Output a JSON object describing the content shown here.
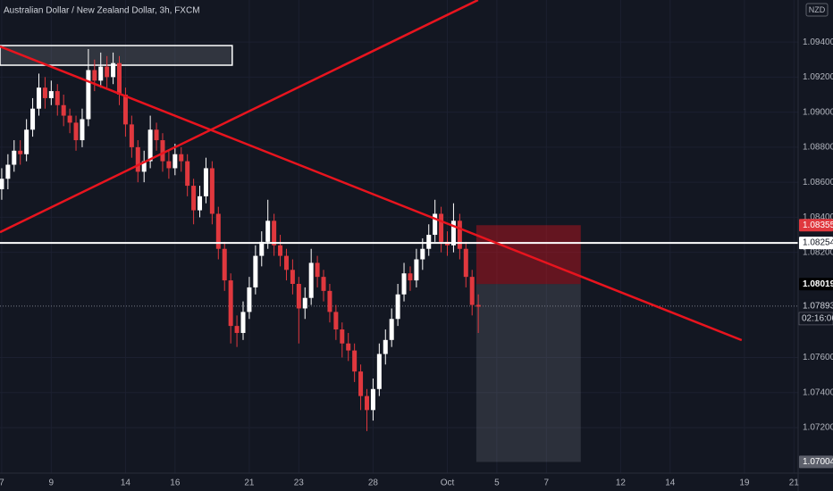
{
  "chart_data": {
    "type": "candlestick",
    "title": "Australian Dollar / New Zealand Dollar, 3h, FXCM",
    "currency": "NZD",
    "up_color": "#ffffff",
    "down_color": "#e0383e",
    "grid": true,
    "x": [
      0,
      0.25,
      0.5,
      0.75,
      1,
      1.25,
      1.5,
      1.75,
      2,
      2.25,
      2.5,
      2.75,
      3,
      3.25,
      3.5,
      3.75,
      4,
      4.25,
      4.5,
      4.75,
      5,
      5.25,
      5.5,
      5.75,
      6,
      6.25,
      6.5,
      6.75,
      7,
      7.25,
      7.5,
      7.75,
      8,
      8.25,
      8.5,
      8.75,
      9,
      9.25,
      9.5,
      9.75,
      10,
      10.25,
      10.5,
      10.75,
      11,
      11.25,
      11.5,
      11.75,
      12,
      12.25,
      12.5,
      12.75,
      13,
      13.25,
      13.5,
      13.75,
      14,
      14.25,
      14.5,
      14.75,
      15,
      15.25,
      15.5,
      15.75,
      16,
      16.25,
      16.5,
      16.75,
      17,
      17.25,
      17.5,
      17.75,
      18,
      18.25,
      18.5,
      18.75,
      19,
      19.25
    ],
    "open": [
      1.0856,
      1.0862,
      1.087,
      1.0878,
      1.0876,
      1.089,
      1.0902,
      1.0914,
      1.0908,
      1.0912,
      1.0904,
      1.0898,
      1.0894,
      1.0884,
      1.0896,
      1.0924,
      1.0918,
      1.0926,
      1.092,
      1.0928,
      1.091,
      1.0893,
      1.088,
      1.0866,
      1.0872,
      1.089,
      1.0884,
      1.0872,
      1.0868,
      1.0876,
      1.0872,
      1.0858,
      1.0844,
      1.0852,
      1.0868,
      1.0842,
      1.0822,
      1.0804,
      1.0778,
      1.0774,
      1.0786,
      1.08,
      1.0818,
      1.0826,
      1.0838,
      1.0824,
      1.0818,
      1.081,
      1.0802,
      1.0788,
      1.0794,
      1.0814,
      1.0806,
      1.0798,
      1.0786,
      1.0776,
      1.0768,
      1.0764,
      1.0752,
      1.0738,
      1.073,
      1.0742,
      1.0762,
      1.077,
      1.0782,
      1.0796,
      1.0808,
      1.0804,
      1.0816,
      1.0822,
      1.083,
      1.0842,
      1.0826,
      1.0824,
      1.0838,
      1.0822,
      1.0806,
      1.079
    ],
    "high": [
      1.0868,
      1.0876,
      1.0884,
      1.0884,
      1.0896,
      1.0908,
      1.0922,
      1.092,
      1.0918,
      1.0916,
      1.091,
      1.0902,
      1.0898,
      1.0902,
      1.0936,
      1.093,
      1.0934,
      1.0932,
      1.0934,
      1.0932,
      1.0914,
      1.0898,
      1.0884,
      1.0878,
      1.0898,
      1.0894,
      1.0888,
      1.0878,
      1.0882,
      1.088,
      1.0876,
      1.0862,
      1.0858,
      1.0874,
      1.0872,
      1.0846,
      1.0826,
      1.0808,
      1.0784,
      1.0792,
      1.0806,
      1.0824,
      1.0832,
      1.085,
      1.0842,
      1.083,
      1.0822,
      1.0816,
      1.0806,
      1.08,
      1.0822,
      1.0818,
      1.081,
      1.0802,
      1.079,
      1.078,
      1.0774,
      1.0768,
      1.0756,
      1.0742,
      1.0748,
      1.0768,
      1.0776,
      1.0788,
      1.0802,
      1.0814,
      1.0812,
      1.0822,
      1.0828,
      1.0836,
      1.085,
      1.0846,
      1.0832,
      1.0848,
      1.0842,
      1.0826,
      1.081,
      1.0796
    ],
    "low": [
      1.085,
      1.0856,
      1.0866,
      1.087,
      1.0872,
      1.0886,
      1.0898,
      1.0902,
      1.0904,
      1.0898,
      1.0892,
      1.0888,
      1.0878,
      1.088,
      1.0892,
      1.0912,
      1.0914,
      1.0914,
      1.0916,
      1.0904,
      1.0886,
      1.0874,
      1.086,
      1.086,
      1.0868,
      1.0878,
      1.0866,
      1.0862,
      1.0864,
      1.0866,
      1.0852,
      1.0836,
      1.084,
      1.0848,
      1.0836,
      1.0816,
      1.0798,
      1.0768,
      1.0766,
      1.077,
      1.0782,
      1.0796,
      1.0812,
      1.0822,
      1.0818,
      1.0812,
      1.0804,
      1.0796,
      1.0768,
      1.0782,
      1.079,
      1.08,
      1.0792,
      1.078,
      1.077,
      1.076,
      1.0758,
      1.0746,
      1.073,
      1.0718,
      1.0724,
      1.0738,
      1.0756,
      1.0766,
      1.0778,
      1.0792,
      1.0798,
      1.08,
      1.081,
      1.0818,
      1.0826,
      1.082,
      1.0818,
      1.082,
      1.0816,
      1.08,
      1.0784,
      1.0774
    ],
    "close": [
      1.0862,
      1.087,
      1.0878,
      1.0876,
      1.089,
      1.0902,
      1.0914,
      1.0908,
      1.0912,
      1.0904,
      1.0898,
      1.0894,
      1.0884,
      1.0896,
      1.0924,
      1.0918,
      1.0926,
      1.092,
      1.0928,
      1.091,
      1.0893,
      1.088,
      1.0866,
      1.0872,
      1.089,
      1.0884,
      1.0872,
      1.0868,
      1.0876,
      1.0872,
      1.0858,
      1.0844,
      1.0852,
      1.0868,
      1.0842,
      1.0822,
      1.0804,
      1.0778,
      1.0774,
      1.0786,
      1.08,
      1.0818,
      1.0826,
      1.0838,
      1.0824,
      1.0818,
      1.081,
      1.0802,
      1.0788,
      1.0794,
      1.0814,
      1.0806,
      1.0798,
      1.0786,
      1.0776,
      1.0768,
      1.0764,
      1.0752,
      1.0738,
      1.073,
      1.0742,
      1.0762,
      1.077,
      1.0782,
      1.0796,
      1.0808,
      1.0804,
      1.0816,
      1.0822,
      1.083,
      1.0842,
      1.0826,
      1.0824,
      1.0838,
      1.0822,
      1.0806,
      1.079,
      1.0789
    ],
    "xlim": [
      -0.07,
      32.17
    ],
    "xticks": [
      {
        "value": 0,
        "label": "7"
      },
      {
        "value": 2,
        "label": "9"
      },
      {
        "value": 5,
        "label": "14"
      },
      {
        "value": 7,
        "label": "16"
      },
      {
        "value": 10,
        "label": "21"
      },
      {
        "value": 12,
        "label": "23"
      },
      {
        "value": 15,
        "label": "28"
      },
      {
        "value": 18,
        "label": "Oct"
      },
      {
        "value": 20,
        "label": "5"
      },
      {
        "value": 22,
        "label": "7"
      },
      {
        "value": 25,
        "label": "12"
      },
      {
        "value": 27,
        "label": "14"
      },
      {
        "value": 30,
        "label": "19"
      },
      {
        "value": 32,
        "label": "21"
      }
    ],
    "ylim": [
      1.0694,
      1.0964
    ],
    "yticks": [
      {
        "value": 1.072,
        "label": "1.07200"
      },
      {
        "value": 1.074,
        "label": "1.07400"
      },
      {
        "value": 1.076,
        "label": "1.07600"
      },
      {
        "value": 1.082,
        "label": "1.08200"
      },
      {
        "value": 1.084,
        "label": "1.08400"
      },
      {
        "value": 1.086,
        "label": "1.08600"
      },
      {
        "value": 1.088,
        "label": "1.08800"
      },
      {
        "value": 1.09,
        "label": "1.09000"
      },
      {
        "value": 1.092,
        "label": "1.09200"
      },
      {
        "value": 1.094,
        "label": "1.09400"
      }
    ],
    "lines": [
      {
        "color": "#e8141e",
        "x": [
          -0.07,
          29.89
        ],
        "y": [
          1.09375,
          1.07699
        ]
      },
      {
        "color": "#e8141e",
        "x": [
          -0.07,
          19.24
        ],
        "y": [
          1.08315,
          1.0964
        ]
      }
    ],
    "hline": {
      "value": 1.08254,
      "label": "1.08254",
      "color": "#ffffff"
    },
    "box": {
      "x": [
        -0.07,
        9.31
      ],
      "y": [
        1.0938,
        1.09268
      ]
    },
    "position": {
      "x": [
        19.17,
        23.39
      ],
      "stop": 1.08355,
      "stop_label": "1.08355",
      "entry": 1.08019,
      "entry_label": "1.08019",
      "target": 1.07004,
      "target_label": "1.07004"
    },
    "last": {
      "value": 1.07893,
      "label": "1.07893",
      "countdown": "02:16:06"
    }
  }
}
